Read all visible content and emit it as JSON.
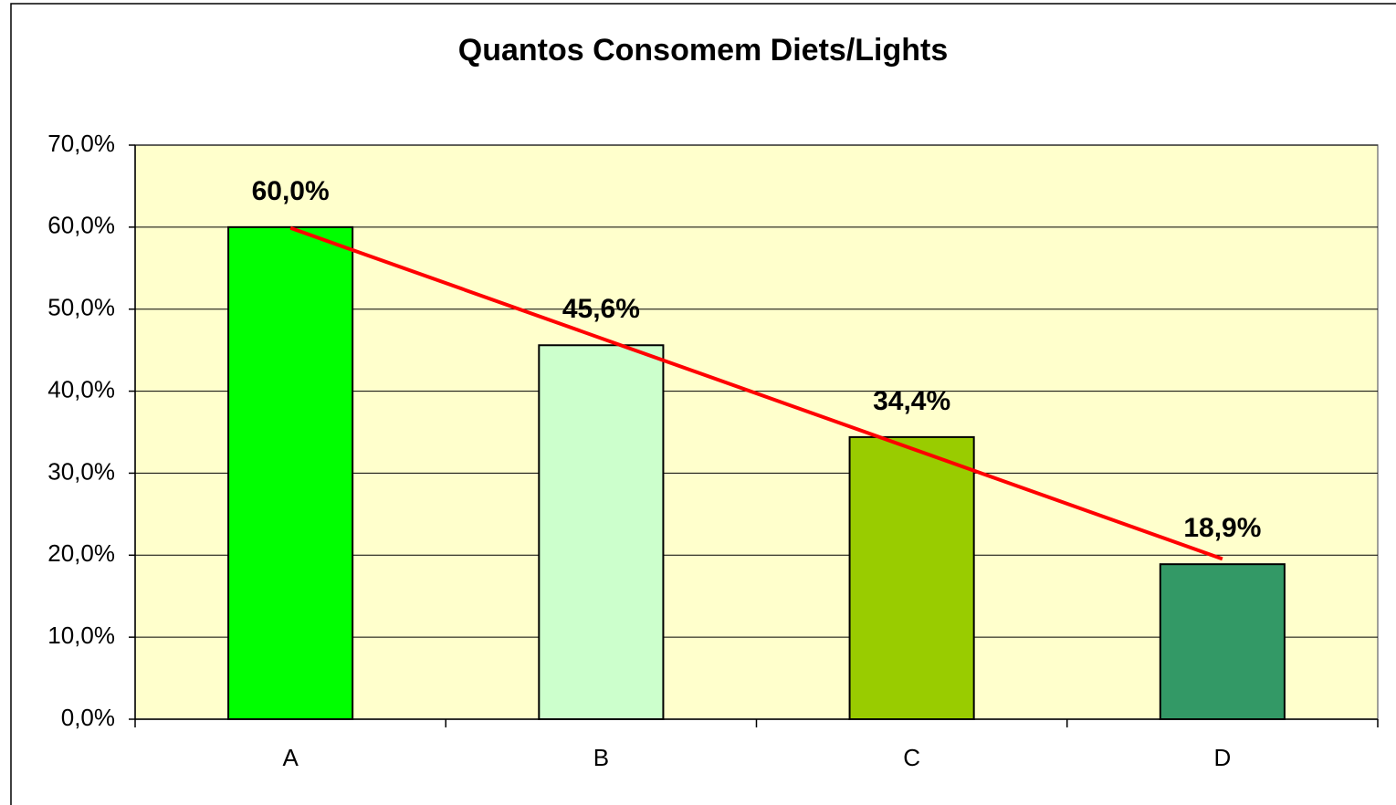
{
  "chart_data": {
    "type": "bar",
    "title": "Quantos Consomem Diets/Lights",
    "categories": [
      "A",
      "B",
      "C",
      "D"
    ],
    "values": [
      60.0,
      45.6,
      34.4,
      18.9
    ],
    "value_labels": [
      "60,0%",
      "45,6%",
      "34,4%",
      "18,9%"
    ],
    "colors": [
      "#00ff00",
      "#ccffcc",
      "#99cc00",
      "#339966"
    ],
    "ylim": [
      0,
      70
    ],
    "yticks": [
      {
        "value": 0,
        "label": "0,0%"
      },
      {
        "value": 10,
        "label": "10,0%"
      },
      {
        "value": 20,
        "label": "20,0%"
      },
      {
        "value": 30,
        "label": "30,0%"
      },
      {
        "value": 40,
        "label": "40,0%"
      },
      {
        "value": 50,
        "label": "50,0%"
      },
      {
        "value": 60,
        "label": "60,0%"
      },
      {
        "value": 70,
        "label": "70,0%"
      }
    ],
    "grid": true,
    "trendline": {
      "type": "linear",
      "color": "#ff0000"
    }
  }
}
